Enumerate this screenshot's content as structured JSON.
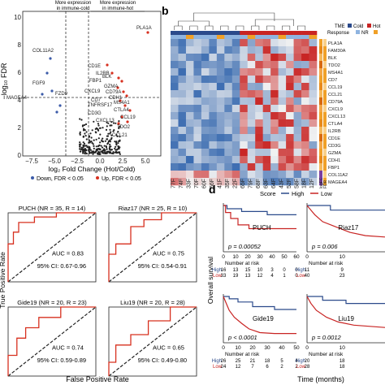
{
  "panel_labels": {
    "b": "b",
    "d": "d"
  },
  "volcano": {
    "ylabel": "−log₁₀ FDR",
    "xlabel": "log₂ Fold Change (Hot/Cold)",
    "yticks": [
      "0",
      "2",
      "4",
      "6",
      "8",
      "10"
    ],
    "xticks": [
      "−7.5",
      "−5.0",
      "−2.5",
      "0.0",
      "2.5",
      "5.0"
    ],
    "arrow_left": "More expression\nin immune-cold",
    "arrow_right": "More expression\nin immune-hot",
    "legend_down": "Down, FDR < 0.05",
    "legend_up": "Up, FDR < 0.05",
    "colors": {
      "down": "#3b5ba9",
      "up": "#d7301f",
      "ns": "#222222"
    },
    "genes": [
      "PLA1A",
      "COL11A2",
      "CD1E",
      "FBP1",
      "IL2RB",
      "BLK",
      "GZMA",
      "CD79A",
      "CDH1",
      "CXCL9",
      "CD7",
      "MS4A1",
      "FGF9",
      "FZD9",
      "MAGEA4",
      "TNFRSF17",
      "CTLA4",
      "CD3G",
      "CXCL13",
      "TDO2",
      "CCL19",
      "CCL21"
    ]
  },
  "heatmap": {
    "legend_tme_label": "TME",
    "legend_cold": "Cold",
    "legend_hot": "Hot",
    "legend_response_label": "Response",
    "legend_nr": "NR",
    "row_genes": [
      "PLA1A",
      "FAM30A",
      "BLK",
      "TDO2",
      "MS4A1",
      "CD7",
      "CCL19",
      "CCL21",
      "CD79A",
      "CXCL9",
      "CXCL13",
      "CTLA4",
      "IL2RB",
      "CD1E",
      "CD3G",
      "GZMA",
      "CDH1",
      "FBP1",
      "COL11A2",
      "MAGEA4"
    ],
    "col_labels": [
      "77F",
      "74F",
      "33F",
      "70F",
      "60F",
      "66F",
      "41F",
      "35F",
      "22F",
      "65F",
      "79F",
      "68F",
      "63F",
      "64F",
      "43F",
      "52F",
      "58F",
      "18F",
      "12F"
    ],
    "side_labels": [
      "logFC",
      "FDR"
    ],
    "colors": {
      "low": "#3a6bb0",
      "mid": "#f2f2f2",
      "high": "#c82423",
      "cold": "#2b4a8b",
      "hot": "#c82423",
      "nr": "#8fb4e0",
      "r": "#f0a028"
    }
  },
  "roc": {
    "ylabel": "True Positive Rate",
    "xlabel": "False Positive Rate",
    "panels": [
      {
        "title": "PUCH (NR = 35, R = 14)",
        "auc": "AUC = 0.83",
        "ci": "95% CI: 0.67-0.96"
      },
      {
        "title": "Riaz17 (NR = 25, R = 10)",
        "auc": "AUC = 0.75",
        "ci": "95% CI: 0.54-0.91"
      },
      {
        "title": "Gide19 (NR = 20, R = 23)",
        "auc": "AUC = 0.74",
        "ci": "95% CI: 0.59-0.89"
      },
      {
        "title": "Liu19 (NR = 20, R = 28)",
        "auc": "AUC = 0.65",
        "ci": "95% CI: 0.49-0.80"
      }
    ]
  },
  "survival": {
    "legend_title": "Score",
    "legend_high": "High",
    "legend_low": "Low",
    "ylabel": "Overall survival",
    "xlabel": "Time (months)",
    "colors": {
      "high": "#2b4a8b",
      "low": "#c82423"
    },
    "panels": [
      {
        "name": "PUCH",
        "p": "p = 0.00052",
        "xticks": [
          "0",
          "10",
          "20",
          "30",
          "40",
          "50",
          "60"
        ],
        "risk_label": "Number at risk",
        "high_row": [
          "16",
          "13",
          "15",
          "10",
          "3",
          "0",
          "0"
        ],
        "low_row": [
          "33",
          "19",
          "13",
          "12",
          "4",
          "1",
          "0"
        ],
        "row_high_label": "High",
        "row_low_label": "Low"
      },
      {
        "name": "Riaz17",
        "p": "p = 0.006",
        "xticks": [
          "0",
          "10"
        ],
        "risk_label": "Number at risk",
        "high_row": [
          "11",
          "9"
        ],
        "low_row": [
          "40",
          "23"
        ],
        "row_high_label": "High",
        "row_low_label": "Low"
      },
      {
        "name": "Gide19",
        "p": "p < 0.0001",
        "xticks": [
          "0",
          "10",
          "20",
          "30",
          "40",
          "50"
        ],
        "risk_label": "Number at risk",
        "high_row": [
          "26",
          "25",
          "21",
          "18",
          "5",
          "4"
        ],
        "low_row": [
          "24",
          "12",
          "7",
          "6",
          "2",
          "2"
        ],
        "row_high_label": "High",
        "row_low_label": "Low"
      },
      {
        "name": "Liu19",
        "p": "p = 0.0012",
        "xticks": [
          "0",
          "10"
        ],
        "risk_label": "Number at risk",
        "high_row": [
          "20",
          "18"
        ],
        "low_row": [
          "28",
          "18"
        ],
        "row_high_label": "High",
        "row_low_label": "Low"
      }
    ]
  }
}
